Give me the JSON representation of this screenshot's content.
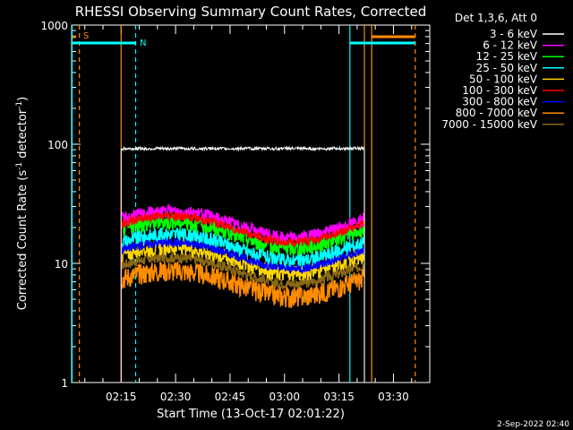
{
  "chart_data": {
    "type": "line",
    "title": "RHESSI Observing Summary Count Rates, Corrected",
    "xlabel": "Start Time (13-Oct-17 02:01:22)",
    "ylabel_main": "Corrected Count Rate (s",
    "ylabel_sup1": "-1",
    "ylabel_mid": " detector",
    "ylabel_sup2": "-1",
    "ylabel_end": ")",
    "yscale": "log",
    "ylim": [
      1,
      1000
    ],
    "y_ticks": [
      1,
      10,
      100,
      1000
    ],
    "y_tick_labels": [
      "1",
      "10",
      "100",
      "1000"
    ],
    "xlim_minutes": [
      "02:01:22",
      "03:40:00"
    ],
    "x_ticks": [
      "02:15",
      "02:30",
      "02:45",
      "03:00",
      "03:15",
      "03:30"
    ],
    "legend_header": "Det 1,3,6, Att 0",
    "legend_placement": "top-right, outside plot",
    "series": [
      {
        "name": "3 - 6 keV",
        "color": "#ffffff",
        "level": 92,
        "amp": 0.03
      },
      {
        "name": "6 - 12 keV",
        "color": "#ff00ff",
        "level": 22,
        "amp": 0.12
      },
      {
        "name": "12 - 25 keV",
        "color": "#00ff00",
        "level": 18,
        "amp": 0.15
      },
      {
        "name": "25 - 50 keV",
        "color": "#00ffff",
        "level": 14,
        "amp": 0.15
      },
      {
        "name": "50 - 100 keV",
        "color": "#ffd700",
        "level": 11,
        "amp": 0.15
      },
      {
        "name": "100 - 300 keV",
        "color": "#ff0000",
        "level": 20,
        "amp": 0.08
      },
      {
        "name": "300 - 800 keV",
        "color": "#0000ff",
        "level": 12,
        "amp": 0.08
      },
      {
        "name": "800 - 7000 keV",
        "color": "#ff8c00",
        "level": 7,
        "amp": 0.2
      },
      {
        "name": "7000 - 15000 keV",
        "color": "#8b6914",
        "level": 9,
        "amp": 0.1
      }
    ],
    "data_window": [
      "02:15:00",
      "03:22:00"
    ],
    "flags": [
      {
        "label": "S",
        "color": "#ff8c00"
      },
      {
        "label": "N",
        "color": "#00ffff"
      }
    ],
    "vertical_markers": [
      {
        "time": "02:15:00",
        "color": "#ff8c00",
        "style": "solid"
      },
      {
        "time": "02:19:00",
        "color": "#00ffff",
        "style": "dashed"
      },
      {
        "time": "02:03:30",
        "color": "#ff8c00",
        "style": "dashed"
      },
      {
        "time": "02:01:30",
        "color": "#00ffff",
        "style": "solid"
      },
      {
        "time": "03:18:00",
        "color": "#00ffff",
        "style": "solid"
      },
      {
        "time": "03:22:00",
        "color": "#ff8c00",
        "style": "solid"
      },
      {
        "time": "03:24:00",
        "color": "#ff8c00",
        "style": "solid"
      },
      {
        "time": "03:36:00",
        "color": "#ff8c00",
        "style": "dashed"
      }
    ],
    "timestamp": "2-Sep-2022 02:40"
  }
}
